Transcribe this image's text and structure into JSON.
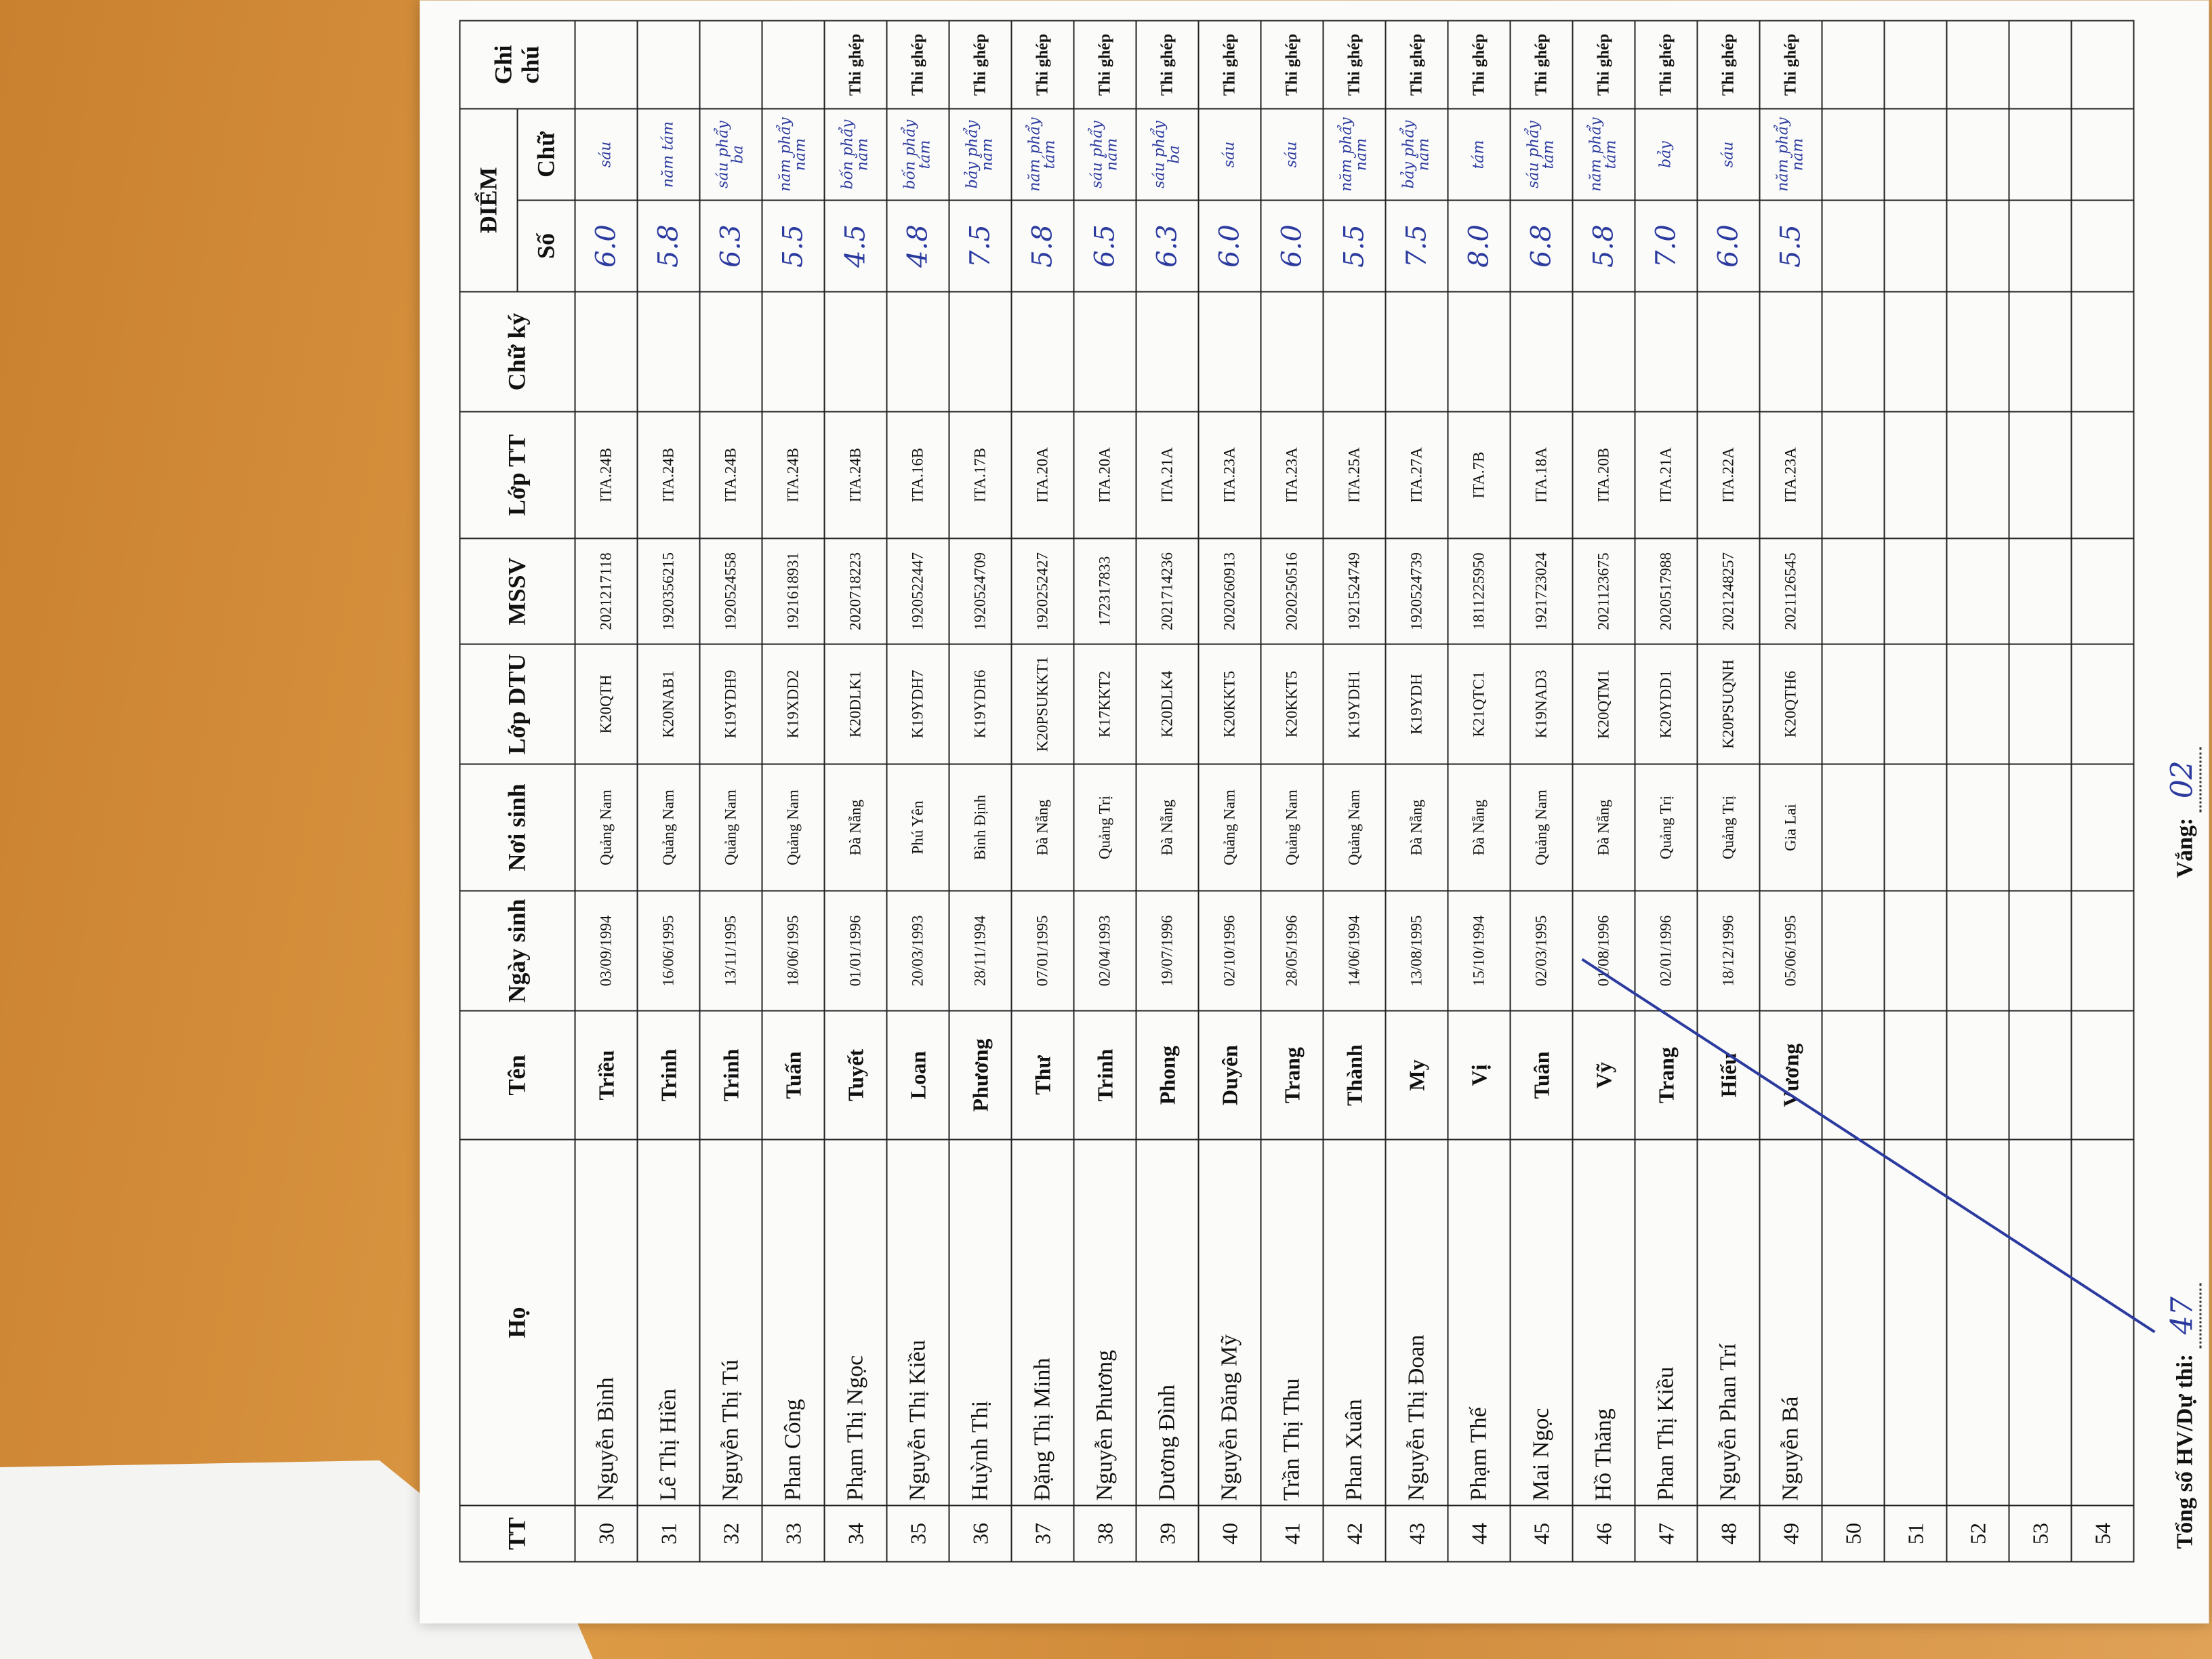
{
  "header": {
    "stt": "TT",
    "ho": "Họ",
    "ten": "Tên",
    "ngay_sinh": "Ngày sinh",
    "noi_sinh": "Nơi sinh",
    "lop_dtu": "Lớp DTU",
    "mssv": "MSSV",
    "lop_tt": "Lớp TT",
    "chu_ky": "Chữ ký",
    "diem": "ĐIỂM",
    "diem_so": "Số",
    "diem_chu": "Chữ",
    "ghi_chu": "Ghi chú"
  },
  "table": {
    "rows": [
      {
        "stt": "30",
        "ho": "Nguyễn Bình",
        "ten": "Triều",
        "ngay_sinh": "03/09/1994",
        "noi_sinh": "Quảng Nam",
        "lop_dtu": "K20QTH",
        "mssv": "2021217118",
        "lop_tt": "ITA.24B",
        "diem_so": "6.0",
        "diem_chu": "sáu"
      },
      {
        "stt": "31",
        "ho": "Lê Thị Hiền",
        "ten": "Trinh",
        "ngay_sinh": "16/06/1995",
        "noi_sinh": "Quảng Nam",
        "lop_dtu": "K20NAB1",
        "mssv": "1920356215",
        "lop_tt": "ITA.24B",
        "diem_so": "5.8",
        "diem_chu": "năm tám"
      },
      {
        "stt": "32",
        "ho": "Nguyễn Thị Tú",
        "ten": "Trinh",
        "ngay_sinh": "13/11/1995",
        "noi_sinh": "Quảng Nam",
        "lop_dtu": "K19YDH9",
        "mssv": "1920524558",
        "lop_tt": "ITA.24B",
        "diem_so": "6.3",
        "diem_chu": "sáu phẩy ba"
      },
      {
        "stt": "33",
        "ho": "Phan Công",
        "ten": "Tuấn",
        "ngay_sinh": "18/06/1995",
        "noi_sinh": "Quảng Nam",
        "lop_dtu": "K19XDD2",
        "mssv": "1921618931",
        "lop_tt": "ITA.24B",
        "diem_so": "5.5",
        "diem_chu": "năm phẩy năm"
      },
      {
        "stt": "34",
        "ho": "Phạm Thị Ngọc",
        "ten": "Tuyết",
        "ngay_sinh": "01/01/1996",
        "noi_sinh": "Đà Nẵng",
        "lop_dtu": "K20DLK1",
        "mssv": "2020718223",
        "lop_tt": "ITA.24B",
        "diem_so": "4.5",
        "diem_chu": "bốn phẩy năm",
        "ghi_chu": "Thi ghép"
      },
      {
        "stt": "35",
        "ho": "Nguyễn Thị Kiều",
        "ten": "Loan",
        "ngay_sinh": "20/03/1993",
        "noi_sinh": "Phú Yên",
        "lop_dtu": "K19YDH7",
        "mssv": "1920522447",
        "lop_tt": "ITA.16B",
        "diem_so": "4.8",
        "diem_chu": "bốn phẩy tám",
        "ghi_chu": "Thi ghép"
      },
      {
        "stt": "36",
        "ho": "Huỳnh Thị",
        "ten": "Phương",
        "ngay_sinh": "28/11/1994",
        "noi_sinh": "Bình Định",
        "lop_dtu": "K19YDH6",
        "mssv": "1920524709",
        "lop_tt": "ITA.17B",
        "diem_so": "7.5",
        "diem_chu": "bảy phẩy năm",
        "ghi_chu": "Thi ghép"
      },
      {
        "stt": "37",
        "ho": "Đặng Thị Minh",
        "ten": "Thư",
        "ngay_sinh": "07/01/1995",
        "noi_sinh": "Đà Nẵng",
        "lop_dtu": "K20PSUKKT1",
        "mssv": "1920252427",
        "lop_tt": "ITA.20A",
        "diem_so": "5.8",
        "diem_chu": "năm phẩy tám",
        "ghi_chu": "Thi ghép"
      },
      {
        "stt": "38",
        "ho": "Nguyễn Phương",
        "ten": "Trinh",
        "ngay_sinh": "02/04/1993",
        "noi_sinh": "Quảng Trị",
        "lop_dtu": "K17KKT2",
        "mssv": "172317833",
        "lop_tt": "ITA.20A",
        "diem_so": "6.5",
        "diem_chu": "sáu phẩy năm",
        "ghi_chu": "Thi ghép"
      },
      {
        "stt": "39",
        "ho": "Dương Đình",
        "ten": "Phong",
        "ngay_sinh": "19/07/1996",
        "noi_sinh": "Đà Nẵng",
        "lop_dtu": "K20DLK4",
        "mssv": "2021714236",
        "lop_tt": "ITA.21A",
        "diem_so": "6.3",
        "diem_chu": "sáu phẩy ba",
        "ghi_chu": "Thi ghép"
      },
      {
        "stt": "40",
        "ho": "Nguyễn Đăng Mỹ",
        "ten": "Duyên",
        "ngay_sinh": "02/10/1996",
        "noi_sinh": "Quảng Nam",
        "lop_dtu": "K20KKT5",
        "mssv": "2020260913",
        "lop_tt": "ITA.23A",
        "diem_so": "6.0",
        "diem_chu": "sáu",
        "ghi_chu": "Thi ghép"
      },
      {
        "stt": "41",
        "ho": "Trần Thị Thu",
        "ten": "Trang",
        "ngay_sinh": "28/05/1996",
        "noi_sinh": "Quảng Nam",
        "lop_dtu": "K20KKT5",
        "mssv": "2020250516",
        "lop_tt": "ITA.23A",
        "diem_so": "6.0",
        "diem_chu": "sáu",
        "ghi_chu": "Thi ghép"
      },
      {
        "stt": "42",
        "ho": "Phan Xuân",
        "ten": "Thành",
        "ngay_sinh": "14/06/1994",
        "noi_sinh": "Quảng Nam",
        "lop_dtu": "K19YDH1",
        "mssv": "1921524749",
        "lop_tt": "ITA.25A",
        "diem_so": "5.5",
        "diem_chu": "năm phẩy năm",
        "ghi_chu": "Thi ghép"
      },
      {
        "stt": "43",
        "ho": "Nguyễn Thị Đoan",
        "ten": "My",
        "ngay_sinh": "13/08/1995",
        "noi_sinh": "Đà Nẵng",
        "lop_dtu": "K19YDH",
        "mssv": "1920524739",
        "lop_tt": "ITA.27A",
        "diem_so": "7.5",
        "diem_chu": "bảy phẩy năm",
        "ghi_chu": "Thi ghép"
      },
      {
        "stt": "44",
        "ho": "Phạm Thế",
        "ten": "Vị",
        "ngay_sinh": "15/10/1994",
        "noi_sinh": "Đà Nẵng",
        "lop_dtu": "K21QTC1",
        "mssv": "1811225950",
        "lop_tt": "ITA.7B",
        "diem_so": "8.0",
        "diem_chu": "tám",
        "ghi_chu": "Thi ghép"
      },
      {
        "stt": "45",
        "ho": "Mai Ngọc",
        "ten": "Tuân",
        "ngay_sinh": "02/03/1995",
        "noi_sinh": "Quảng Nam",
        "lop_dtu": "K19NAD3",
        "mssv": "1921723024",
        "lop_tt": "ITA.18A",
        "diem_so": "6.8",
        "diem_chu": "sáu phẩy tám",
        "ghi_chu": "Thi ghép"
      },
      {
        "stt": "46",
        "ho": "Hồ Thăng",
        "ten": "Vỹ",
        "ngay_sinh": "01/08/1996",
        "noi_sinh": "Đà Nẵng",
        "lop_dtu": "K20QTM1",
        "mssv": "2021123675",
        "lop_tt": "ITA.20B",
        "diem_so": "5.8",
        "diem_chu": "năm phẩy tám",
        "ghi_chu": "Thi ghép"
      },
      {
        "stt": "47",
        "ho": "Phan Thị Kiều",
        "ten": "Trang",
        "ngay_sinh": "02/01/1996",
        "noi_sinh": "Quảng Trị",
        "lop_dtu": "K20YDD1",
        "mssv": "2020517988",
        "lop_tt": "ITA.21A",
        "diem_so": "7.0",
        "diem_chu": "bảy",
        "ghi_chu": "Thi ghép"
      },
      {
        "stt": "48",
        "ho": "Nguyễn Phan Trí",
        "ten": "Hiếu",
        "ngay_sinh": "18/12/1996",
        "noi_sinh": "Quảng Trị",
        "lop_dtu": "K20PSUQNH",
        "mssv": "2021248257",
        "lop_tt": "ITA.22A",
        "diem_so": "6.0",
        "diem_chu": "sáu",
        "ghi_chu": "Thi ghép"
      },
      {
        "stt": "49",
        "ho": "Nguyễn Bá",
        "ten": "Vương",
        "ngay_sinh": "05/06/1995",
        "noi_sinh": "Gia Lai",
        "lop_dtu": "K20QTH6",
        "mssv": "2021126545",
        "lop_tt": "ITA.23A",
        "diem_so": "5.5",
        "diem_chu": "năm phẩy năm",
        "ghi_chu": "Thi ghép"
      },
      {
        "stt": "50"
      },
      {
        "stt": "51"
      },
      {
        "stt": "52"
      },
      {
        "stt": "53"
      },
      {
        "stt": "54"
      }
    ]
  },
  "footer": {
    "total_label": "Tổng số HV/Dự thi:",
    "total_value": "47",
    "absent_label": "Vắng:",
    "absent_value": "02"
  }
}
